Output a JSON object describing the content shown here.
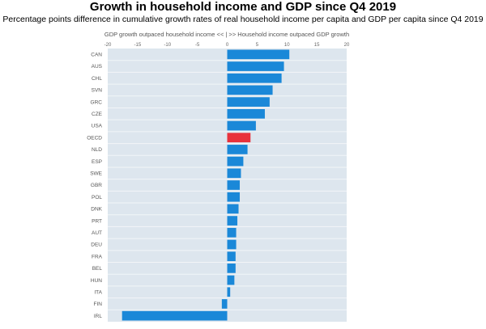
{
  "chart_data": {
    "type": "bar",
    "orientation": "horizontal",
    "title": "Growth in household income and GDP since Q4 2019",
    "subtitle": "Percentage points difference in cumulative growth rates of real household income per capita and GDP per capita since Q4 2019",
    "xlabel": "GDP growth outpaced household income << | >> Household income outpaced GDP growth",
    "xlim": [
      -20,
      20
    ],
    "xticks": [
      -20,
      -15,
      -10,
      -5,
      0,
      5,
      10,
      15,
      20
    ],
    "categories": [
      "CAN",
      "AUS",
      "CHL",
      "SVN",
      "GRC",
      "CZE",
      "USA",
      "OECD",
      "NLD",
      "ESP",
      "SWE",
      "GBR",
      "POL",
      "DNK",
      "PRT",
      "AUT",
      "DEU",
      "FRA",
      "BEL",
      "HUN",
      "ITA",
      "FIN",
      "IRL"
    ],
    "values": [
      10.4,
      9.5,
      9.1,
      7.6,
      7.1,
      6.3,
      4.8,
      3.9,
      3.4,
      2.7,
      2.3,
      2.1,
      2.1,
      1.9,
      1.7,
      1.5,
      1.5,
      1.4,
      1.4,
      1.2,
      0.5,
      -0.9,
      -17.6
    ],
    "highlight": "OECD",
    "colors": {
      "bar": "#1a88d8",
      "highlight": "#e8323c",
      "plot_bg": "#dde6ee",
      "grid": "#f2f5f8"
    },
    "grid": true
  }
}
